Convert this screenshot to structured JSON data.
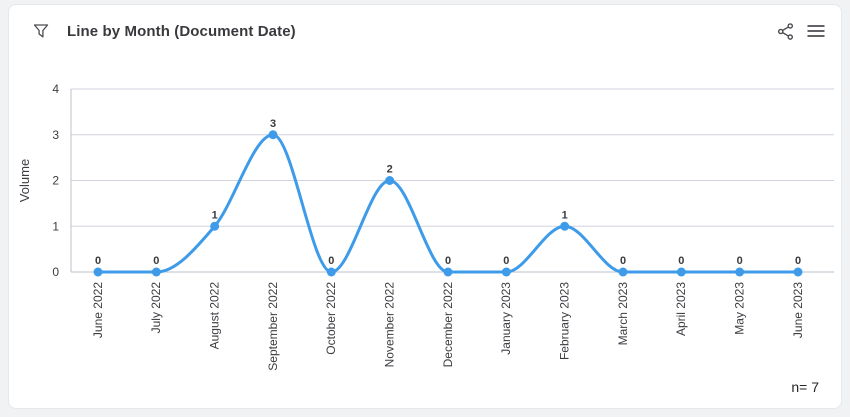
{
  "header": {
    "title": "Line by Month (Document Date)",
    "icons": [
      "filter-funnel-icon",
      "share-icon",
      "menu-icon"
    ]
  },
  "chart_data": {
    "type": "line",
    "title": "Line by Month (Document Date)",
    "categories": [
      "June 2022",
      "July 2022",
      "August 2022",
      "September 2022",
      "October 2022",
      "November 2022",
      "December 2022",
      "January 2023",
      "February 2023",
      "March 2023",
      "April 2023",
      "May 2023",
      "June 2023"
    ],
    "values": [
      0,
      0,
      1,
      3,
      0,
      2,
      0,
      0,
      1,
      0,
      0,
      0,
      0
    ],
    "xlabel": "",
    "ylabel": "Volume",
    "ylim": [
      0,
      4
    ],
    "yticks": [
      0,
      1,
      2,
      3,
      4
    ],
    "grid": true,
    "legend": false,
    "smooth": "monotone",
    "show_point_labels": true,
    "colors": {
      "line": "#3d9be9",
      "point": "#3d9be9",
      "grid": "#d2d3dc",
      "axis": "#bfc1cc",
      "tick_label": "#3c3d42",
      "value_label": "#3a3a3f"
    }
  },
  "footer": {
    "n_label": "n= 7"
  }
}
